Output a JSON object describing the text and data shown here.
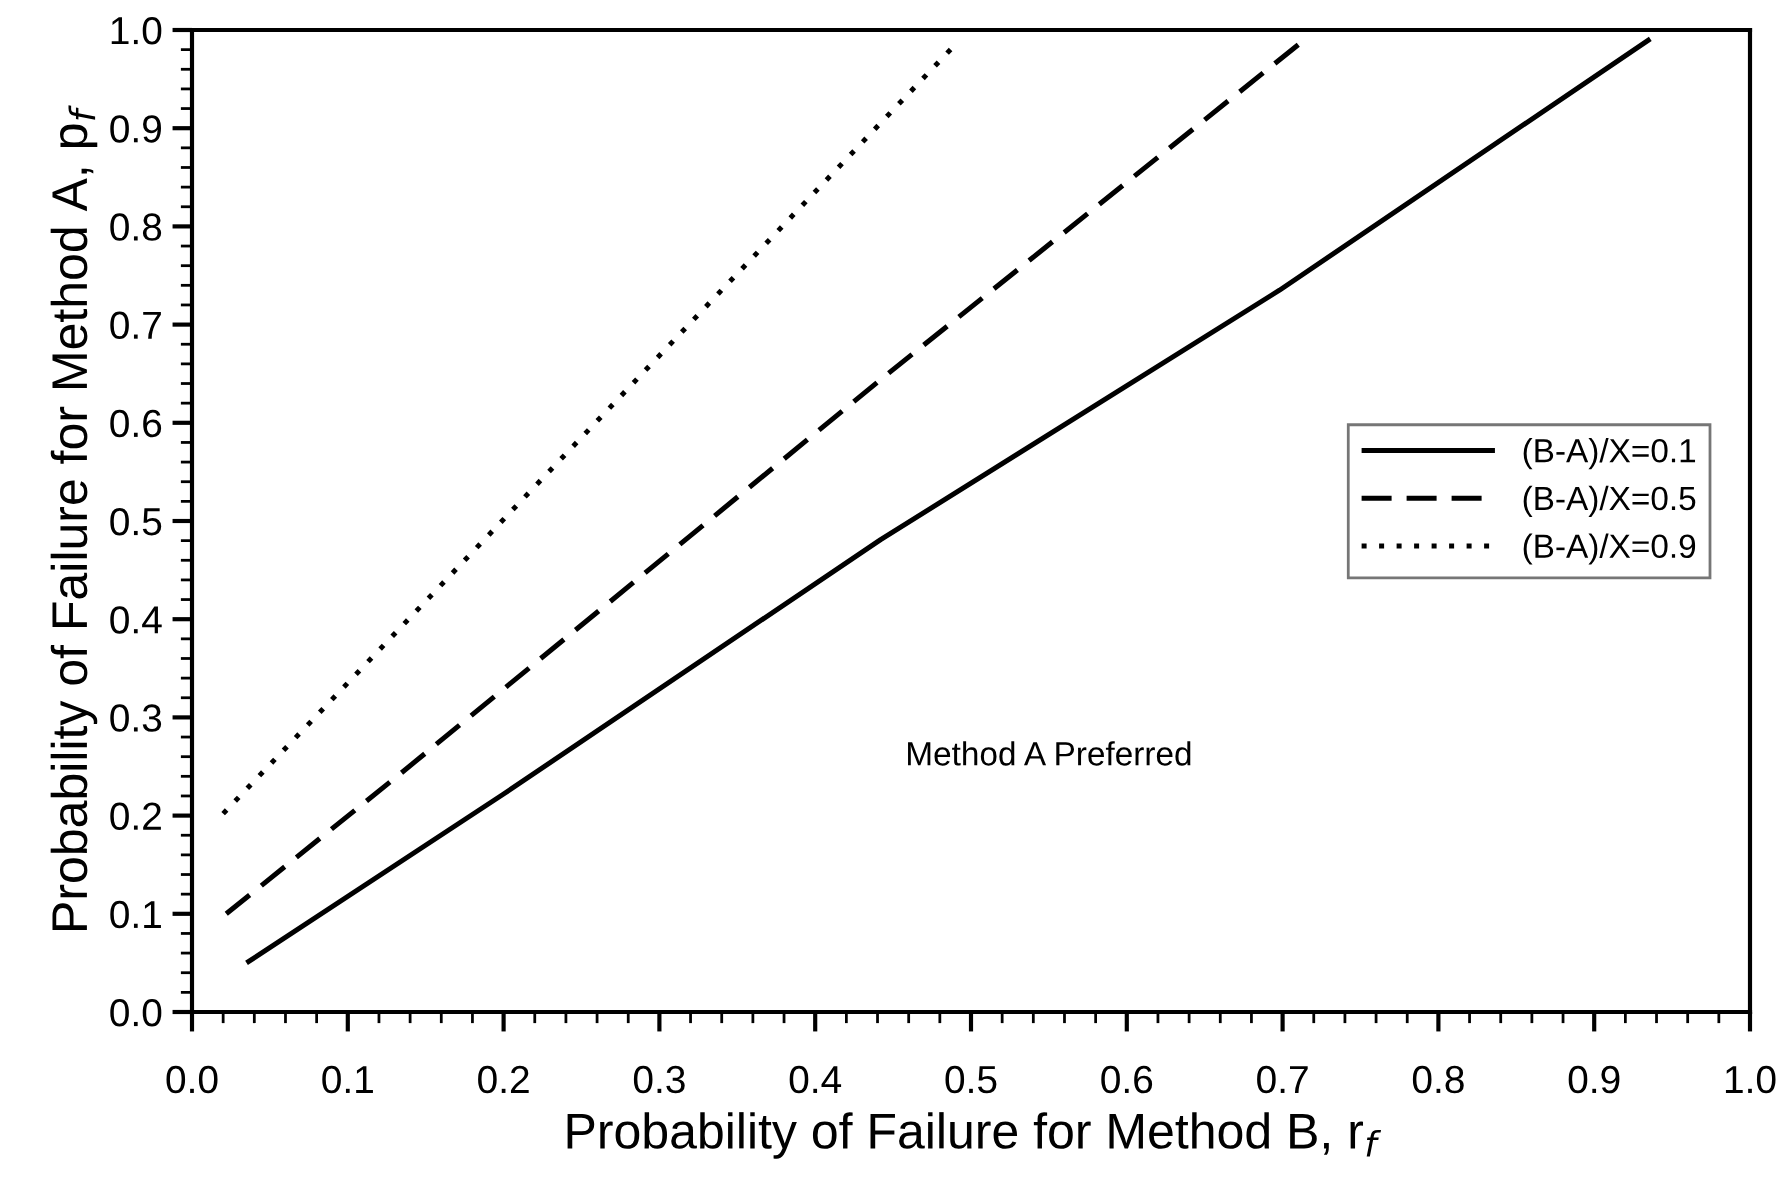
{
  "chart_data": {
    "type": "line",
    "xlabel": "Probability of Failure for Method B, r$_{f}$",
    "ylabel": "Probability of Failure for Method A, p$_{f}$",
    "annotations": [
      "Method A Preferred"
    ],
    "series": [
      {
        "name": "(B-A)/X=0.1",
        "color": "#000000",
        "line_style": "solid",
        "x": [
          0.035,
          0.2,
          0.442,
          0.698,
          0.936
        ],
        "values": [
          0.05,
          0.222,
          0.481,
          0.735,
          0.991
        ]
      },
      {
        "name": "(B-A)/X=0.5",
        "color": "#000000",
        "line_style": "dashed",
        "x": [
          0.022,
          0.134,
          0.442,
          0.714
        ],
        "values": [
          0.1,
          0.243,
          0.644,
          0.99
        ]
      },
      {
        "name": "(B-A)/X=0.9",
        "color": "#000000",
        "line_style": "dotted",
        "x": [
          0.02,
          0.157,
          0.488
        ],
        "values": [
          0.202,
          0.43,
          0.982
        ]
      }
    ],
    "xlim": [
      0,
      1
    ],
    "ylim": [
      0,
      1
    ],
    "xticks": [
      {
        "value": 0,
        "label": "0.0"
      },
      0.1,
      0.2,
      0.3,
      0.4,
      0.5,
      0.6,
      0.7,
      0.8,
      0.9,
      {
        "value": 1,
        "label": "1.0"
      }
    ],
    "yticks": [
      {
        "value": 0,
        "label": "0.0"
      },
      0.1,
      0.2,
      0.3,
      0.4,
      0.5,
      0.6,
      0.7,
      0.8,
      0.9,
      {
        "value": 1,
        "label": "1.0"
      }
    ],
    "grid": false,
    "legend": "right",
    "marker": "none"
  }
}
